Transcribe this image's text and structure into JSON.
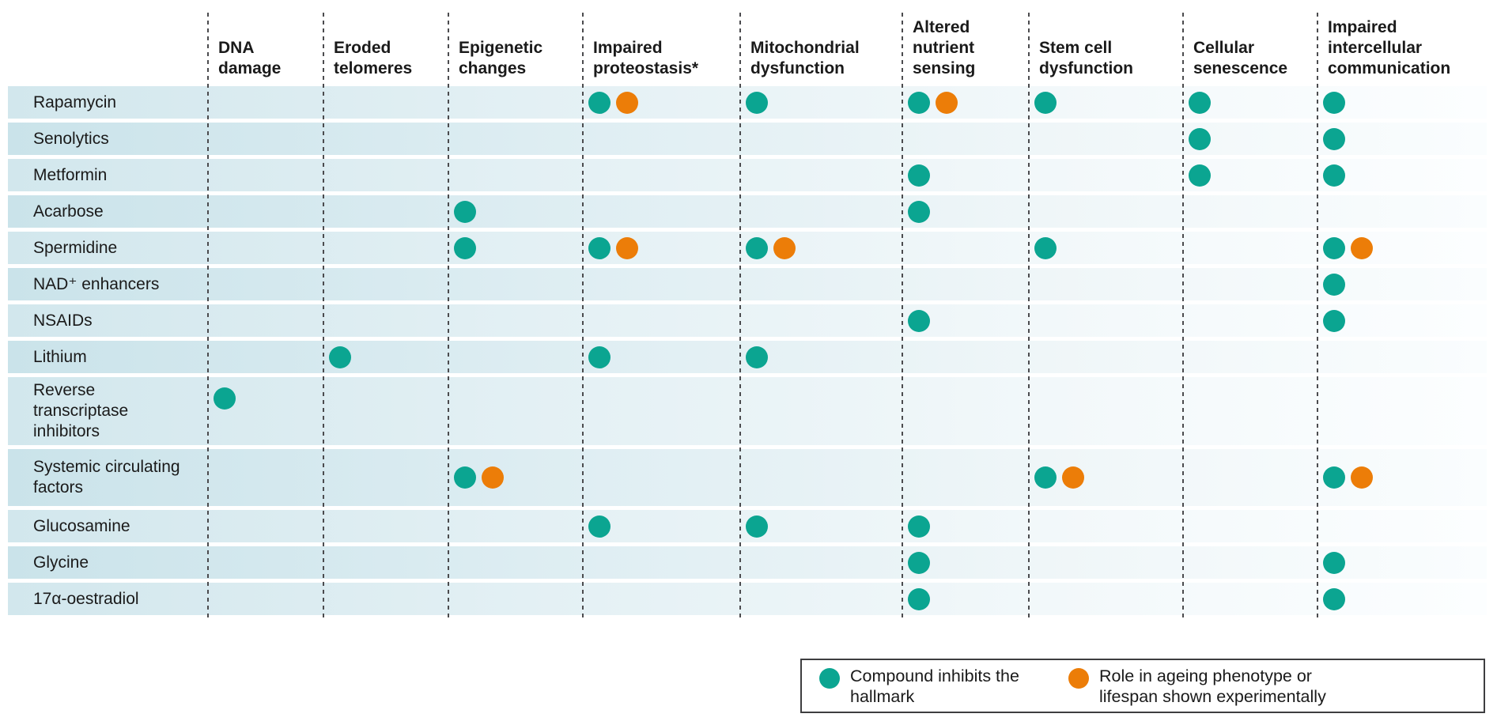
{
  "colors": {
    "teal": "#0ba591",
    "orange": "#ec7d08"
  },
  "columns": [
    "DNA damage",
    "Eroded telomeres",
    "Epigenetic changes",
    "Impaired proteostasis*",
    "Mitochondrial dysfunction",
    "Altered nutrient sensing",
    "Stem cell dysfunction",
    "Cellular senescence",
    "Impaired intercellular communication"
  ],
  "rows": [
    {
      "label": "Rapamycin",
      "cells": [
        [],
        [],
        [],
        [
          "teal",
          "orange"
        ],
        [
          "teal"
        ],
        [
          "teal",
          "orange"
        ],
        [
          "teal"
        ],
        [
          "teal"
        ],
        [
          "teal"
        ]
      ]
    },
    {
      "label": "Senolytics",
      "cells": [
        [],
        [],
        [],
        [],
        [],
        [],
        [],
        [
          "teal"
        ],
        [
          "teal"
        ]
      ]
    },
    {
      "label": "Metformin",
      "cells": [
        [],
        [],
        [],
        [],
        [],
        [
          "teal"
        ],
        [],
        [
          "teal"
        ],
        [
          "teal"
        ]
      ]
    },
    {
      "label": "Acarbose",
      "cells": [
        [],
        [],
        [
          "teal"
        ],
        [],
        [],
        [
          "teal"
        ],
        [],
        [],
        []
      ]
    },
    {
      "label": "Spermidine",
      "cells": [
        [],
        [],
        [
          "teal"
        ],
        [
          "teal",
          "orange"
        ],
        [
          "teal",
          "orange"
        ],
        [],
        [
          "teal"
        ],
        [],
        [
          "teal",
          "orange"
        ]
      ]
    },
    {
      "label": "NAD⁺ enhancers",
      "cells": [
        [],
        [],
        [],
        [],
        [],
        [],
        [],
        [],
        [
          "teal"
        ]
      ]
    },
    {
      "label": "NSAIDs",
      "cells": [
        [],
        [],
        [],
        [],
        [],
        [
          "teal"
        ],
        [],
        [],
        [
          "teal"
        ]
      ]
    },
    {
      "label": "Lithium",
      "cells": [
        [],
        [
          "teal"
        ],
        [],
        [
          "teal"
        ],
        [
          "teal"
        ],
        [],
        [],
        [],
        []
      ]
    },
    {
      "label": "Reverse transcriptase inhibitors",
      "cells": [
        [
          "teal"
        ],
        [],
        [],
        [],
        [],
        [],
        [],
        [],
        []
      ]
    },
    {
      "label": "Systemic circulating factors",
      "cells": [
        [],
        [],
        [
          "teal",
          "orange"
        ],
        [],
        [],
        [],
        [
          "teal",
          "orange"
        ],
        [],
        [
          "teal",
          "orange"
        ]
      ]
    },
    {
      "label": "Glucosamine",
      "cells": [
        [],
        [],
        [],
        [
          "teal"
        ],
        [
          "teal"
        ],
        [
          "teal"
        ],
        [],
        [],
        []
      ]
    },
    {
      "label": "Glycine",
      "cells": [
        [],
        [],
        [],
        [],
        [],
        [
          "teal"
        ],
        [],
        [],
        [
          "teal"
        ]
      ]
    },
    {
      "label": "17α-oestradiol",
      "cells": [
        [],
        [],
        [],
        [],
        [],
        [
          "teal"
        ],
        [],
        [],
        [
          "teal"
        ]
      ]
    }
  ],
  "legend": {
    "items": [
      {
        "dot": "teal",
        "label": "Compound inhibits the hallmark"
      },
      {
        "dot": "orange",
        "label": "Role in ageing phenotype or lifespan shown experimentally"
      }
    ]
  }
}
